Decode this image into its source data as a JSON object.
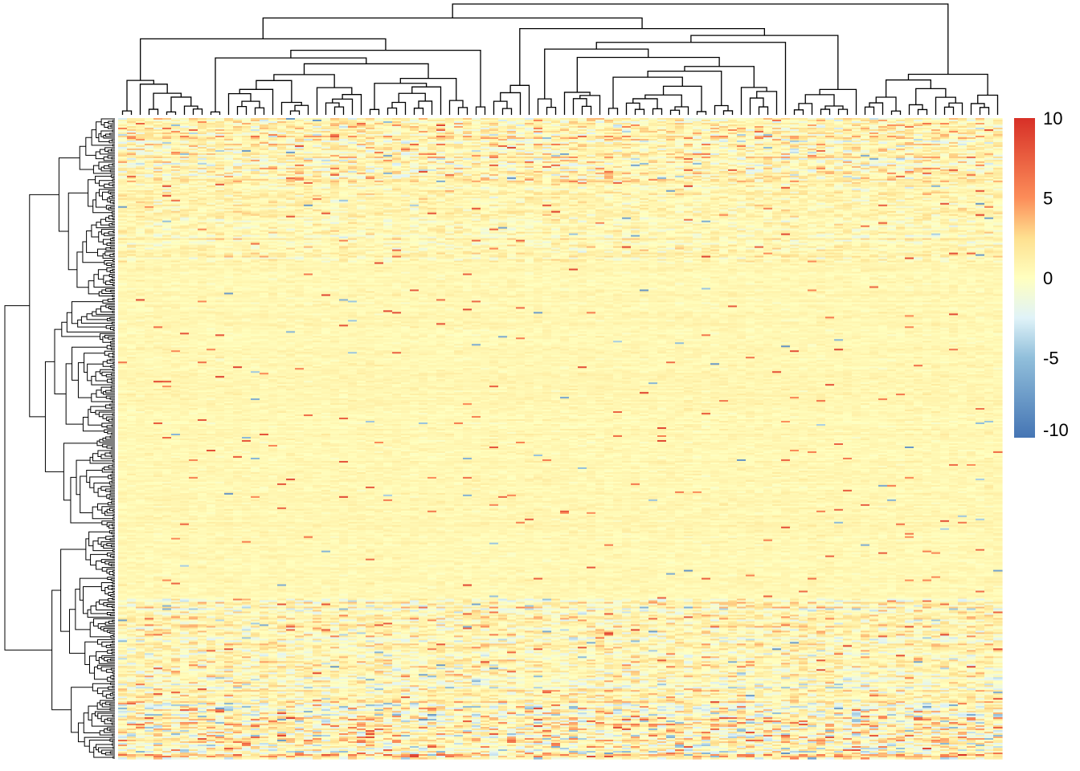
{
  "chart_data": {
    "type": "heatmap",
    "title": "",
    "xlabel": "",
    "ylabel": "",
    "n_columns": 100,
    "n_rows": 400,
    "value_range": [
      -10,
      10
    ],
    "color_scale": {
      "stops": [
        {
          "value": -10,
          "color": "#4575b4"
        },
        {
          "value": -5,
          "color": "#91bfdb"
        },
        {
          "value": -2.5,
          "color": "#e0f3f8"
        },
        {
          "value": 0,
          "color": "#ffffbf"
        },
        {
          "value": 2.5,
          "color": "#fee090"
        },
        {
          "value": 5,
          "color": "#fc8d59"
        },
        {
          "value": 10,
          "color": "#d73027"
        }
      ]
    },
    "legend": {
      "placement": "right",
      "ticks": [
        {
          "value": 10,
          "label": "10"
        },
        {
          "value": 5,
          "label": "5"
        },
        {
          "value": 0,
          "label": "0"
        },
        {
          "value": -5,
          "label": "-5"
        },
        {
          "value": -10,
          "label": "-10"
        }
      ]
    },
    "column_dendrogram": true,
    "row_dendrogram": true,
    "row_bands": [
      {
        "rows": [
          0,
          40
        ],
        "noise": 1.6,
        "outlier_rate": 0.012
      },
      {
        "rows": [
          40,
          90
        ],
        "noise": 0.9,
        "outlier_rate": 0.008
      },
      {
        "rows": [
          90,
          300
        ],
        "noise": 0.35,
        "outlier_rate": 0.007
      },
      {
        "rows": [
          300,
          365
        ],
        "noise": 1.4,
        "outlier_rate": 0.012
      },
      {
        "rows": [
          365,
          400
        ],
        "noise": 2.2,
        "outlier_rate": 0.02
      }
    ],
    "random_seed": 20240611
  }
}
